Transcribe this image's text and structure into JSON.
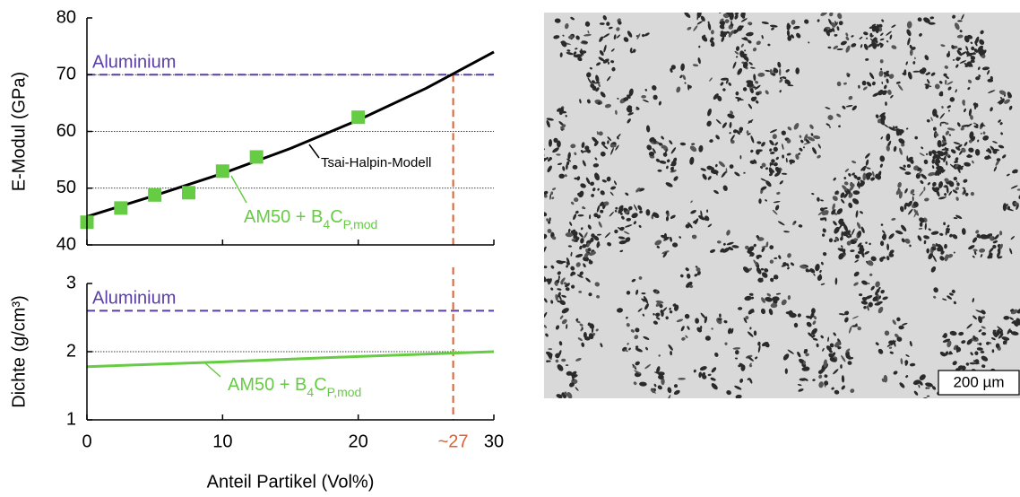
{
  "chart_data": [
    {
      "type": "scatter",
      "y_label": "E-Modul (GPa)",
      "xlim": [
        0,
        30
      ],
      "xticks": [
        0,
        10,
        20,
        30
      ],
      "xtick_labels": false,
      "ylim": [
        40,
        80
      ],
      "yticks": [
        40,
        50,
        60,
        70,
        80
      ],
      "grid": true,
      "series": [
        {
          "type": "line",
          "color": "#000000",
          "x": [
            0,
            5,
            10,
            15,
            20,
            25,
            30
          ],
          "values": [
            45,
            48.7,
            52.6,
            57,
            62,
            67.6,
            74
          ]
        },
        {
          "type": "scatter",
          "color": "#66cc44",
          "x": [
            0,
            2.5,
            5,
            7.5,
            10,
            12.5,
            20
          ],
          "values": [
            44,
            46.5,
            48.8,
            49.2,
            53,
            55.5,
            62.5
          ]
        }
      ],
      "reference_lines": [
        {
          "label": "Aluminium",
          "value": 70,
          "color": "#5a3ea6"
        }
      ],
      "vline": {
        "x": 27,
        "from": 70,
        "color": "#e06030"
      },
      "annotations": [
        {
          "parts": [
            {
              "text": "Tsai-Halpin-Modell"
            }
          ],
          "color": "#000000"
        },
        {
          "parts": [
            {
              "text": "AM50 + B"
            },
            {
              "text": "4",
              "sub": true
            },
            {
              "text": "C"
            },
            {
              "text": "P,mod",
              "sub": true
            }
          ],
          "color": "#66cc44"
        }
      ]
    },
    {
      "type": "line",
      "y_label": "Dichte (g/cm³)",
      "x_label": "Anteil Partikel (Vol%)",
      "xlim": [
        0,
        30
      ],
      "xticks": [
        0,
        10,
        20,
        {
          "value": 27,
          "label": "~27"
        },
        30
      ],
      "xtick_labels": true,
      "ylim": [
        1,
        3
      ],
      "yticks": [
        1,
        2,
        3
      ],
      "grid": true,
      "series": [
        {
          "type": "line",
          "color": "#66cc44",
          "x": [
            0,
            10,
            20,
            30
          ],
          "values": [
            1.78,
            1.85,
            1.93,
            2.0
          ]
        }
      ],
      "reference_lines": [
        {
          "label": "Aluminium",
          "value": 2.6,
          "color": "#5a3ea6"
        }
      ],
      "vline": {
        "x": 27,
        "color": "#e06030"
      },
      "annotations": [
        {
          "parts": [
            {
              "text": "AM50 + B"
            },
            {
              "text": "4",
              "sub": true
            },
            {
              "text": "C"
            },
            {
              "text": "P,mod",
              "sub": true
            }
          ],
          "color": "#66cc44"
        }
      ]
    }
  ],
  "micrograph": {
    "scale_bar": "200 µm"
  }
}
